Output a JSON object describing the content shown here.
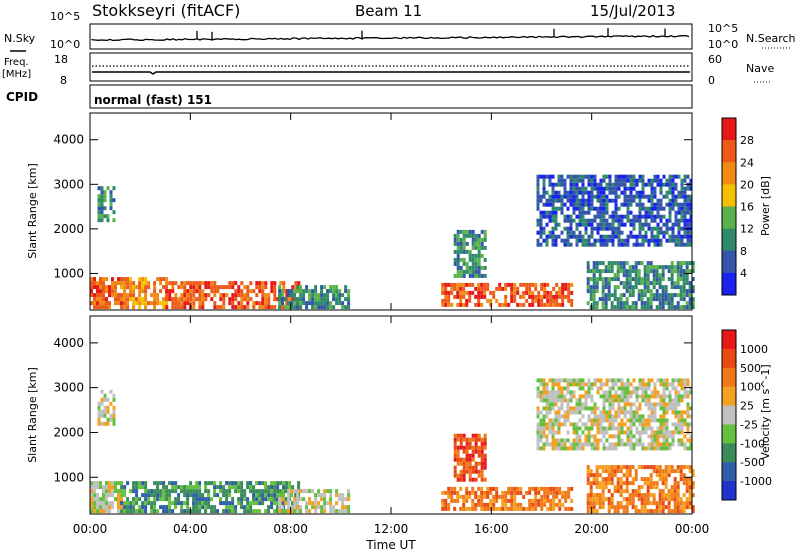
{
  "header": {
    "station": "Stokkseyri (fitACF)",
    "beam": "Beam 11",
    "date": "15/Jul/2013"
  },
  "noise_panel": {
    "left_label": "N.Sky",
    "right_label": "N.Search",
    "left_ticks": [
      "10^5",
      "10^0"
    ],
    "right_ticks": [
      "10^5",
      "10^0"
    ]
  },
  "freq_panel": {
    "left_label_1": "Freq.",
    "left_label_2": "[MHz]",
    "right_label": "Nave",
    "left_ticks": [
      "18",
      "8"
    ],
    "right_ticks": [
      "60",
      "0"
    ]
  },
  "cpid_panel": {
    "label": "CPID",
    "mode": "normal (fast) 151"
  },
  "chart_data": [
    {
      "type": "heatmap",
      "title": "",
      "xlabel": "",
      "ylabel": "Slant Range [km]",
      "xlim": [
        0,
        24
      ],
      "ylim": [
        180,
        4600
      ],
      "y_ticks": [
        "1000",
        "2000",
        "3000",
        "4000"
      ],
      "colorbar_label": "Power [dB]",
      "colorbar_ticks": [
        "4",
        "8",
        "12",
        "16",
        "20",
        "24",
        "28"
      ],
      "colors": [
        "#1a22ee",
        "#3355aa",
        "#2f8a6a",
        "#5ab24a",
        "#f5c000",
        "#f08a14",
        "#ee5a1a",
        "#e81818"
      ],
      "regions": [
        {
          "t0": 0.0,
          "t1": 1.2,
          "r0": 200,
          "r1": 900,
          "level": 6
        },
        {
          "t0": 0.3,
          "t1": 1.0,
          "r0": 2150,
          "r1": 2900,
          "level": 2
        },
        {
          "t0": 1.2,
          "t1": 3.0,
          "r0": 200,
          "r1": 850,
          "level": 5
        },
        {
          "t0": 3.0,
          "t1": 8.3,
          "r0": 200,
          "r1": 750,
          "level": 6
        },
        {
          "t0": 7.5,
          "t1": 10.3,
          "r0": 200,
          "r1": 650,
          "level": 2
        },
        {
          "t0": 14.0,
          "t1": 19.2,
          "r0": 250,
          "r1": 700,
          "level": 6
        },
        {
          "t0": 14.5,
          "t1": 15.8,
          "r0": 900,
          "r1": 1900,
          "level": 2
        },
        {
          "t0": 17.8,
          "t1": 24.0,
          "r0": 1600,
          "r1": 3200,
          "level": 1
        },
        {
          "t0": 19.8,
          "t1": 24.0,
          "r0": 200,
          "r1": 1200,
          "level": 2
        }
      ]
    },
    {
      "type": "heatmap",
      "title": "",
      "xlabel": "Time UT",
      "ylabel": "Slant Range [km]",
      "xlim": [
        0,
        24
      ],
      "ylim": [
        180,
        4600
      ],
      "y_ticks": [
        "1000",
        "2000",
        "3000",
        "4000"
      ],
      "x_ticks": [
        "00:00",
        "04:00",
        "08:00",
        "12:00",
        "16:00",
        "20:00",
        "00:00"
      ],
      "colorbar_label": "Velocity [m s^-1]",
      "colorbar_ticks": [
        "1000",
        "500",
        "100",
        "25",
        "-25",
        "-100",
        "-500",
        "-1000"
      ],
      "colors": [
        "#2233cc",
        "#2f5fa8",
        "#3a8d5a",
        "#66c040",
        "#c0c0c0",
        "#f5a020",
        "#f07818",
        "#e84a14",
        "#e81818"
      ],
      "regions": [
        {
          "t0": 0.0,
          "t1": 1.2,
          "r0": 200,
          "r1": 900,
          "level": 4
        },
        {
          "t0": 0.3,
          "t1": 1.0,
          "r0": 2150,
          "r1": 2900,
          "level": 4
        },
        {
          "t0": 1.2,
          "t1": 8.3,
          "r0": 200,
          "r1": 850,
          "level": 2
        },
        {
          "t0": 7.5,
          "t1": 10.3,
          "r0": 200,
          "r1": 650,
          "level": 4
        },
        {
          "t0": 14.0,
          "t1": 19.2,
          "r0": 250,
          "r1": 700,
          "level": 6
        },
        {
          "t0": 14.5,
          "t1": 15.8,
          "r0": 900,
          "r1": 1900,
          "level": 7
        },
        {
          "t0": 17.8,
          "t1": 24.0,
          "r0": 1600,
          "r1": 3200,
          "level": 4
        },
        {
          "t0": 19.8,
          "t1": 24.0,
          "r0": 200,
          "r1": 1200,
          "level": 6
        }
      ]
    }
  ]
}
